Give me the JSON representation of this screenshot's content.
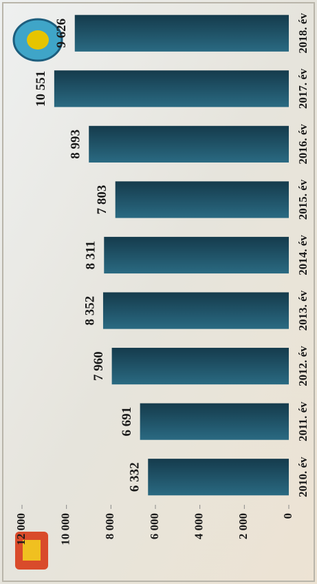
{
  "chart_data": {
    "type": "bar",
    "categories": [
      "2010. év",
      "2011. év",
      "2012. év",
      "2013. év",
      "2014. év",
      "2015. év",
      "2016. év",
      "2017. év",
      "2018. év"
    ],
    "values": [
      6332,
      6691,
      7960,
      8352,
      8311,
      7803,
      8993,
      10551,
      9626
    ],
    "value_labels": [
      "6 332",
      "6 691",
      "7 960",
      "8 352",
      "8 311",
      "7 803",
      "8 993",
      "10 551",
      "9 626"
    ],
    "color": "#1d4d61",
    "ylim": [
      0,
      12000
    ],
    "yticks": [
      0,
      {
        "value": 2000,
        "label": "2 000"
      },
      {
        "value": 4000,
        "label": "4 000"
      },
      {
        "value": 6000,
        "label": "6 000"
      },
      {
        "value": 8000,
        "label": "8 000"
      },
      {
        "value": 10000,
        "label": "10 000"
      },
      {
        "value": 12000,
        "label": "12 000"
      }
    ]
  }
}
